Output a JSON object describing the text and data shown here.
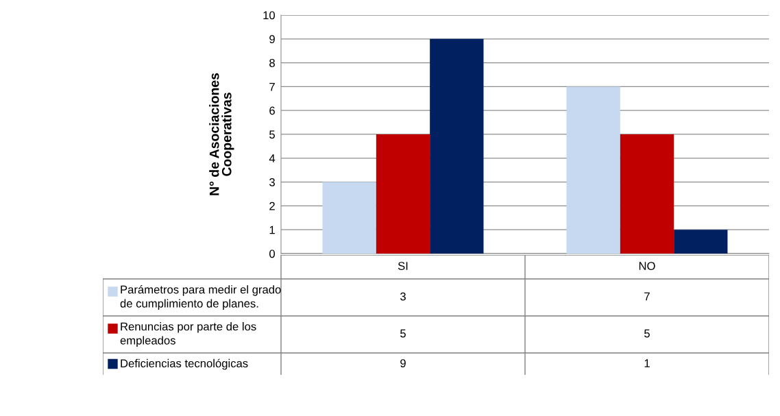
{
  "chart_data": {
    "type": "bar",
    "ylabel": "N° de Asociaciones\nCooperativas",
    "categories": [
      "SI",
      "NO"
    ],
    "series": [
      {
        "name": "Parámetros para medir el grado\nde cumplimiento de planes.",
        "color": "#c6d9f1",
        "values": [
          3,
          7
        ]
      },
      {
        "name": "Renuncias por parte de los\nempleados",
        "color": "#c00000",
        "values": [
          5,
          5
        ]
      },
      {
        "name": "Deficiencias tecnológicas",
        "color": "#002060",
        "values": [
          9,
          1
        ]
      }
    ],
    "ylim": [
      0,
      10
    ],
    "yticks": [
      0,
      1,
      2,
      3,
      4,
      5,
      6,
      7,
      8,
      9,
      10
    ],
    "grid": "y",
    "data_labels": true,
    "legend": "bottom left"
  }
}
